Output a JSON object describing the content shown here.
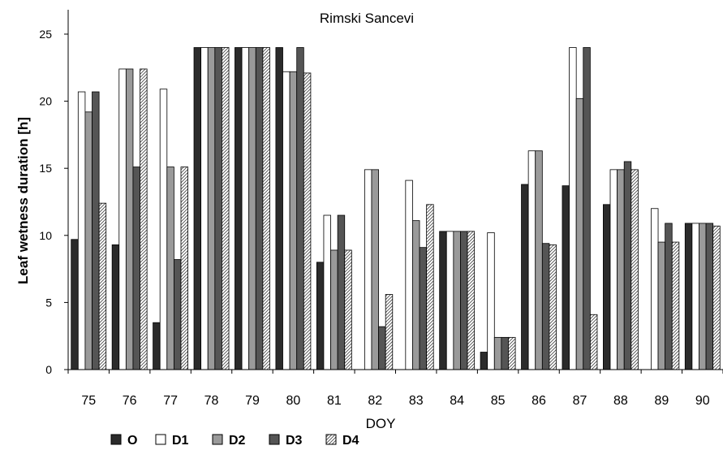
{
  "chart_data": {
    "type": "bar",
    "title": "Rimski Sancevi",
    "xlabel": "DOY",
    "ylabel": "Leaf wetness duration [h]",
    "ylim": [
      0,
      25
    ],
    "yticks": [
      0,
      5,
      10,
      15,
      20,
      25
    ],
    "grid": false,
    "legend_position": "bottom-left",
    "categories": [
      "75",
      "76",
      "77",
      "78",
      "79",
      "80",
      "81",
      "82",
      "83",
      "84",
      "85",
      "86",
      "87",
      "88",
      "89",
      "90"
    ],
    "series": [
      {
        "name": "O",
        "fill": "#2b2b2b",
        "pattern": "solid",
        "values": [
          9.7,
          9.3,
          3.5,
          24,
          24,
          24,
          8.0,
          0,
          0,
          10.3,
          1.3,
          13.8,
          13.7,
          12.3,
          0,
          10.9
        ]
      },
      {
        "name": "D1",
        "fill": "#ffffff",
        "pattern": "solid",
        "values": [
          20.7,
          22.4,
          20.9,
          24,
          24,
          22.2,
          11.5,
          14.9,
          14.1,
          10.3,
          10.2,
          16.3,
          24,
          14.9,
          12.0,
          10.9
        ]
      },
      {
        "name": "D2",
        "fill": "#9a9a9a",
        "pattern": "solid",
        "values": [
          19.2,
          22.4,
          15.1,
          24,
          24,
          22.2,
          8.9,
          14.9,
          11.1,
          10.3,
          2.4,
          16.3,
          20.2,
          14.9,
          9.5,
          10.9
        ]
      },
      {
        "name": "D3",
        "fill": "#555555",
        "pattern": "solid",
        "values": [
          20.7,
          15.1,
          8.2,
          24,
          24,
          24,
          11.5,
          3.2,
          9.1,
          10.3,
          2.4,
          9.4,
          24,
          15.5,
          10.9,
          10.9
        ]
      },
      {
        "name": "D4",
        "fill": "#ffffff",
        "pattern": "hatch",
        "values": [
          12.4,
          22.4,
          15.1,
          24,
          24,
          22.1,
          8.9,
          5.6,
          12.3,
          10.3,
          2.4,
          9.3,
          4.1,
          14.9,
          9.5,
          10.7
        ]
      }
    ]
  }
}
